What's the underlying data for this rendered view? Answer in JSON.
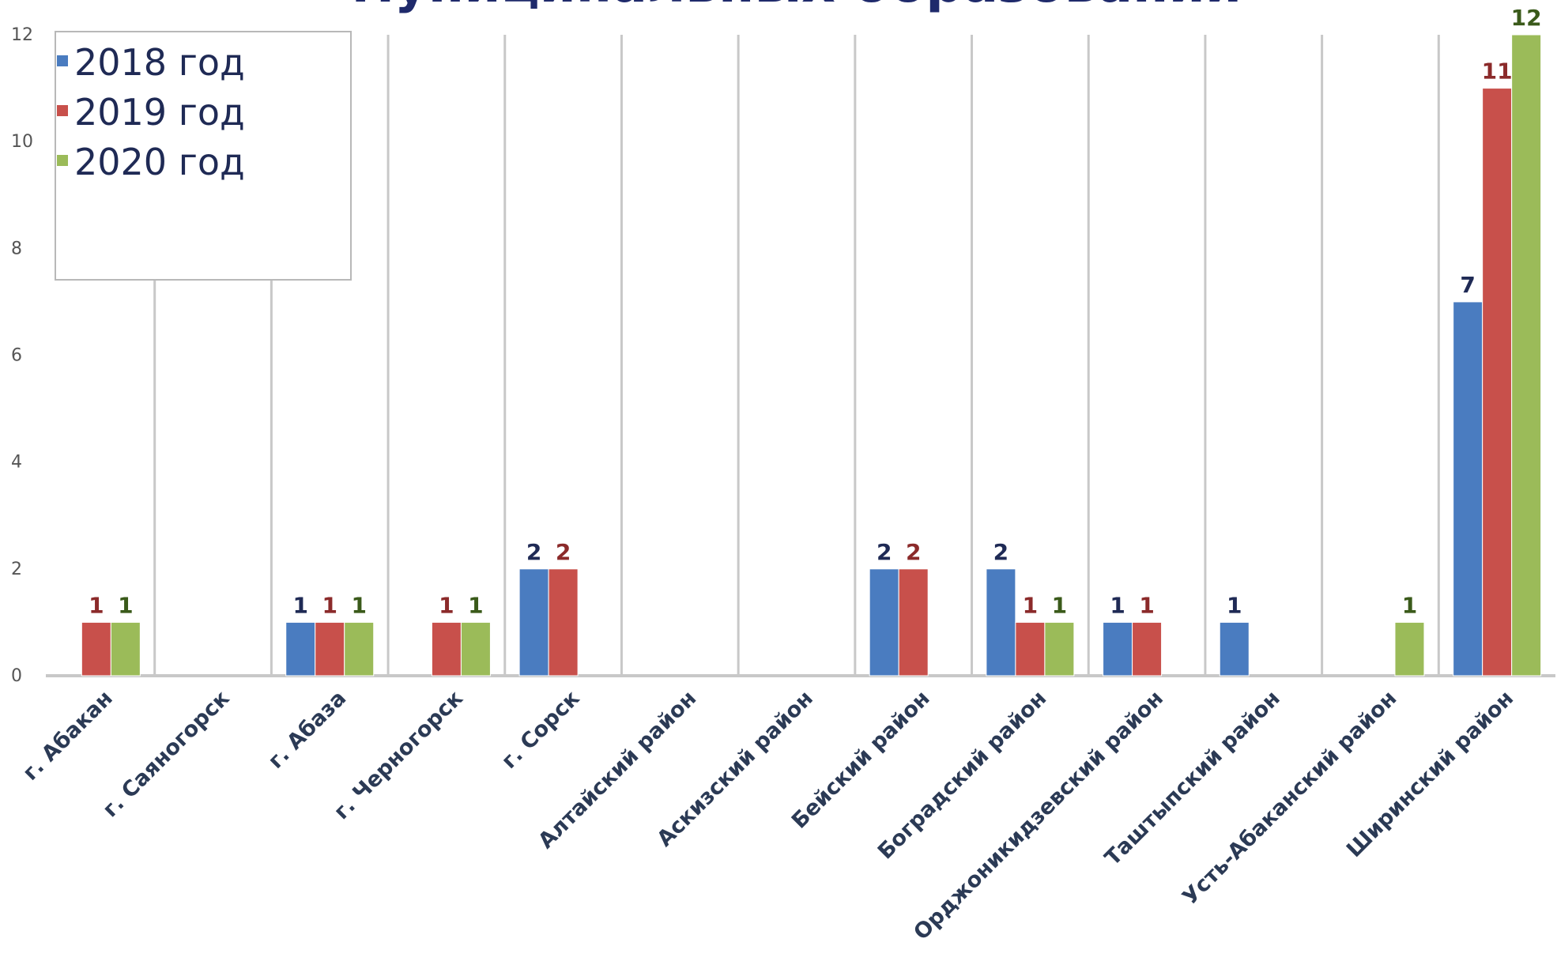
{
  "chart_data": {
    "type": "bar",
    "title": "муниципальных образований",
    "xlabel": "",
    "ylabel": "",
    "ylim": [
      0,
      12
    ],
    "yticks": [
      0,
      2,
      4,
      6,
      8,
      10,
      12
    ],
    "grid": "vertical category separators",
    "legend_position": "top-left",
    "categories": [
      "г. Абакан",
      "г. Саяногорск",
      "г. Абаза",
      "г. Черногорск",
      "г. Сорск",
      "Алтайский район",
      "Аскизский район",
      "Бейский район",
      "Боградский район",
      "Орджоникидзевский район",
      "Таштыпский район",
      "Усть-Абаканский район",
      "Ширинский район"
    ],
    "series": [
      {
        "name": "2018 год",
        "color": "#4a7cc0",
        "label_color": "#1f2a55",
        "values": [
          null,
          null,
          1,
          null,
          2,
          null,
          null,
          2,
          2,
          1,
          1,
          null,
          7
        ]
      },
      {
        "name": "2019 год",
        "color": "#c8504b",
        "label_color": "#8b2a2a",
        "values": [
          1,
          null,
          1,
          1,
          2,
          null,
          null,
          2,
          1,
          1,
          null,
          null,
          11
        ]
      },
      {
        "name": "2020 год",
        "color": "#9bbb59",
        "label_color": "#3a5a1a",
        "values": [
          1,
          null,
          1,
          1,
          null,
          null,
          null,
          null,
          1,
          null,
          null,
          1,
          12
        ]
      }
    ]
  }
}
